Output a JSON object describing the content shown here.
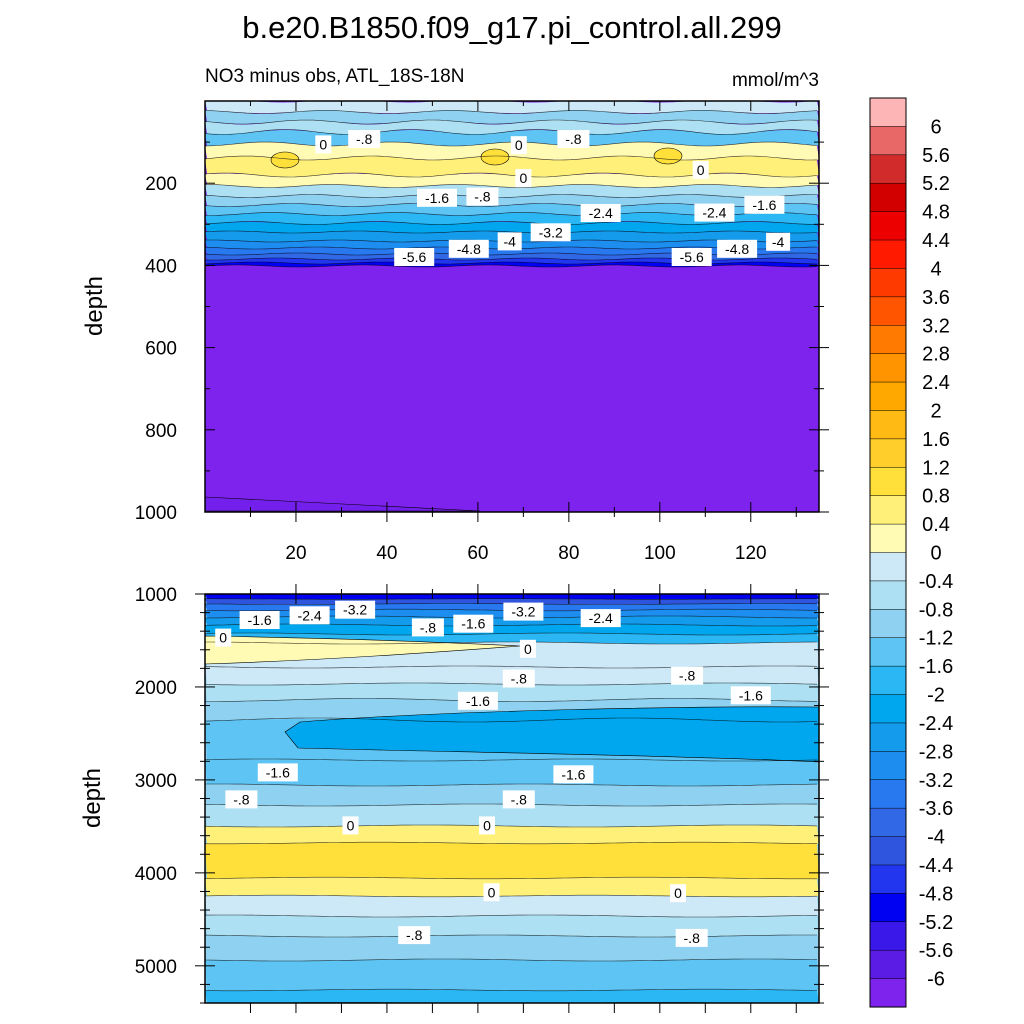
{
  "title": "b.e20.B1850.f09_g17.pi_control.all.299",
  "subtitle_left": "NO3 minus obs, ATL_18S-18N",
  "units": "mmol/m^3",
  "chart_data": [
    {
      "type": "contour",
      "panel": "upper",
      "ylabel": "depth",
      "xlabel": "",
      "xlim": [
        0,
        135
      ],
      "ylim": [
        0,
        1000
      ],
      "y_inverted": true,
      "x_ticks": [
        20,
        40,
        60,
        80,
        100,
        120
      ],
      "x_tick_labels": [
        "20",
        "40",
        "60",
        "80",
        "100",
        "120"
      ],
      "y_ticks": [
        200,
        400,
        600,
        800,
        1000
      ],
      "y_tick_labels": [
        "200",
        "400",
        "600",
        "800",
        "1000"
      ],
      "contour_labels": [
        {
          "x": 26,
          "y": 108,
          "text": "0"
        },
        {
          "x": 35,
          "y": 95,
          "text": "-.8"
        },
        {
          "x": 69,
          "y": 110,
          "text": "0"
        },
        {
          "x": 81,
          "y": 95,
          "text": "-.8"
        },
        {
          "x": 109,
          "y": 170,
          "text": "0"
        },
        {
          "x": 70,
          "y": 190,
          "text": "0"
        },
        {
          "x": 51,
          "y": 238,
          "text": "-1.6"
        },
        {
          "x": 61,
          "y": 235,
          "text": "-.8"
        },
        {
          "x": 87,
          "y": 275,
          "text": "-2.4"
        },
        {
          "x": 112,
          "y": 274,
          "text": "-2.4"
        },
        {
          "x": 123,
          "y": 255,
          "text": "-1.6"
        },
        {
          "x": 76,
          "y": 322,
          "text": "-3.2"
        },
        {
          "x": 67,
          "y": 344,
          "text": "-4"
        },
        {
          "x": 58,
          "y": 362,
          "text": "-4.8"
        },
        {
          "x": 46,
          "y": 382,
          "text": "-5.6"
        },
        {
          "x": 117,
          "y": 362,
          "text": "-4.8"
        },
        {
          "x": 126,
          "y": 345,
          "text": "-4"
        },
        {
          "x": 107,
          "y": 382,
          "text": "-5.6"
        }
      ]
    },
    {
      "type": "contour",
      "panel": "lower",
      "ylabel": "depth",
      "xlabel": "",
      "xlim": [
        0,
        135
      ],
      "ylim": [
        1000,
        5400
      ],
      "y_inverted": true,
      "y_ticks": [
        1000,
        2000,
        3000,
        4000,
        5000
      ],
      "y_tick_labels": [
        "1000",
        "2000",
        "3000",
        "4000",
        "5000"
      ],
      "contour_labels": [
        {
          "x": 12,
          "y": 1290,
          "text": "-1.6"
        },
        {
          "x": 23,
          "y": 1240,
          "text": "-2.4"
        },
        {
          "x": 33,
          "y": 1180,
          "text": "-3.2"
        },
        {
          "x": 4,
          "y": 1480,
          "text": "0"
        },
        {
          "x": 49,
          "y": 1370,
          "text": "-.8"
        },
        {
          "x": 59,
          "y": 1330,
          "text": "-1.6"
        },
        {
          "x": 70,
          "y": 1200,
          "text": "-3.2"
        },
        {
          "x": 87,
          "y": 1270,
          "text": "-2.4"
        },
        {
          "x": 71,
          "y": 1600,
          "text": "0"
        },
        {
          "x": 69,
          "y": 1920,
          "text": "-.8"
        },
        {
          "x": 60,
          "y": 2160,
          "text": "-1.6"
        },
        {
          "x": 106,
          "y": 1890,
          "text": "-.8"
        },
        {
          "x": 120,
          "y": 2100,
          "text": "-1.6"
        },
        {
          "x": 16,
          "y": 2930,
          "text": "-1.6"
        },
        {
          "x": 8,
          "y": 3220,
          "text": "-.8"
        },
        {
          "x": 81,
          "y": 2950,
          "text": "-1.6"
        },
        {
          "x": 69,
          "y": 3220,
          "text": "-.8"
        },
        {
          "x": 32,
          "y": 3500,
          "text": "0"
        },
        {
          "x": 62,
          "y": 3500,
          "text": "0"
        },
        {
          "x": 63,
          "y": 4220,
          "text": "0"
        },
        {
          "x": 104,
          "y": 4230,
          "text": "0"
        },
        {
          "x": 46,
          "y": 4680,
          "text": "-.8"
        },
        {
          "x": 107,
          "y": 4710,
          "text": "-.8"
        }
      ]
    },
    {
      "type": "colorbar",
      "levels": [
        "6",
        "5.6",
        "5.2",
        "4.8",
        "4.4",
        "4",
        "3.6",
        "3.2",
        "2.8",
        "2.4",
        "2",
        "1.6",
        "1.2",
        "0.8",
        "0.4",
        "0",
        "-0.4",
        "-0.8",
        "-1.2",
        "-1.6",
        "-2",
        "-2.4",
        "-2.8",
        "-3.2",
        "-3.6",
        "-4",
        "-4.4",
        "-4.8",
        "-5.2",
        "-5.6",
        "-6"
      ],
      "colors": [
        "#fdb5b5",
        "#e86868",
        "#d22b2b",
        "#d30000",
        "#ec0000",
        "#ff1a00",
        "#ff3a00",
        "#ff5500",
        "#ff7a00",
        "#ff9400",
        "#ffa800",
        "#ffba14",
        "#ffce2a",
        "#ffe03a",
        "#fff07a",
        "#fffbb4",
        "#cde8f6",
        "#ade0f2",
        "#8fd1f0",
        "#5ec4f3",
        "#2bb6f4",
        "#00a7ef",
        "#159bec",
        "#1d8df0",
        "#2878f0",
        "#3068e6",
        "#2f55df",
        "#2136ee",
        "#0000f2",
        "#3a18ea",
        "#5b1ce6",
        "#7e22ee"
      ]
    }
  ]
}
